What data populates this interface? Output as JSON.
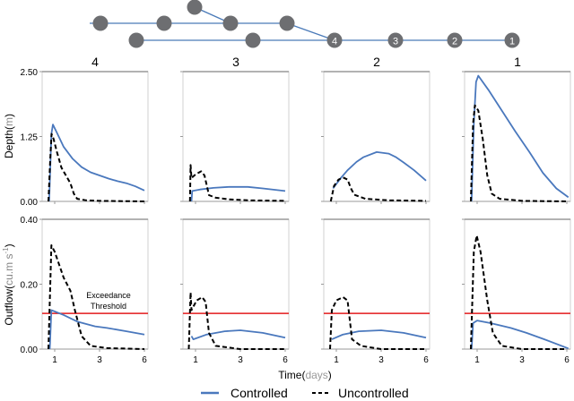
{
  "network": {
    "node_labels": [
      "4",
      "3",
      "2",
      "1"
    ],
    "node_color": "#6d6e71",
    "edge_color": "#4a7ab8"
  },
  "colors": {
    "controlled": "#4a78bd",
    "uncontrolled": "#000000",
    "threshold": "#e31a1c"
  },
  "xaxis": {
    "label": "Time",
    "unit": "days",
    "ticks": [
      1,
      3,
      6
    ]
  },
  "legend": {
    "controlled": "Controlled",
    "uncontrolled": "Uncontrolled"
  },
  "threshold_label": [
    "Exceedance",
    "Threshold"
  ],
  "chart_data": [
    {
      "type": "line",
      "panel": "4",
      "row": "depth",
      "ylabel": "Depth",
      "yunit": "m",
      "ylim": [
        0,
        2.5
      ],
      "yticks": [
        "0.00",
        "1.25",
        "2.50"
      ],
      "series": [
        {
          "name": "Controlled",
          "points": [
            [
              0.75,
              0
            ],
            [
              0.85,
              1.3
            ],
            [
              0.92,
              1.48
            ],
            [
              1.1,
              1.32
            ],
            [
              1.4,
              1.05
            ],
            [
              1.8,
              0.82
            ],
            [
              2.2,
              0.66
            ],
            [
              2.6,
              0.56
            ],
            [
              3.0,
              0.5
            ],
            [
              3.6,
              0.44
            ],
            [
              4.2,
              0.39
            ],
            [
              4.8,
              0.35
            ],
            [
              5.4,
              0.29
            ],
            [
              6.0,
              0.21
            ]
          ]
        },
        {
          "name": "Uncontrolled",
          "points": [
            [
              0.72,
              0
            ],
            [
              0.8,
              0.8
            ],
            [
              0.86,
              1.3
            ],
            [
              0.95,
              1.2
            ],
            [
              1.1,
              0.95
            ],
            [
              1.3,
              0.65
            ],
            [
              1.5,
              0.5
            ],
            [
              1.7,
              0.35
            ],
            [
              1.85,
              0.15
            ],
            [
              2.0,
              0.05
            ],
            [
              2.4,
              0.02
            ],
            [
              3,
              0.01
            ],
            [
              6,
              0
            ]
          ]
        }
      ]
    },
    {
      "type": "line",
      "panel": "3",
      "row": "depth",
      "ylim": [
        0,
        2.5
      ],
      "series": [
        {
          "name": "Controlled",
          "points": [
            [
              0.82,
              0
            ],
            [
              0.85,
              0.2
            ],
            [
              1.2,
              0.23
            ],
            [
              1.8,
              0.26
            ],
            [
              2.5,
              0.28
            ],
            [
              3.5,
              0.28
            ],
            [
              4.5,
              0.25
            ],
            [
              6.0,
              0.2
            ]
          ]
        },
        {
          "name": "Uncontrolled",
          "points": [
            [
              0.75,
              0
            ],
            [
              0.78,
              0.7
            ],
            [
              0.82,
              0.45
            ],
            [
              1.0,
              0.52
            ],
            [
              1.25,
              0.58
            ],
            [
              1.4,
              0.5
            ],
            [
              1.6,
              0.12
            ],
            [
              1.9,
              0.07
            ],
            [
              2.5,
              0.04
            ],
            [
              3.5,
              0.02
            ],
            [
              6,
              0.01
            ]
          ]
        }
      ]
    },
    {
      "type": "line",
      "panel": "2",
      "row": "depth",
      "ylim": [
        0,
        2.5
      ],
      "series": [
        {
          "name": "Controlled",
          "points": [
            [
              0.85,
              0.25
            ],
            [
              1.2,
              0.45
            ],
            [
              1.5,
              0.6
            ],
            [
              1.9,
              0.76
            ],
            [
              2.2,
              0.85
            ],
            [
              2.8,
              0.95
            ],
            [
              3.5,
              0.92
            ],
            [
              4.0,
              0.85
            ],
            [
              4.5,
              0.75
            ],
            [
              5.2,
              0.6
            ],
            [
              6.0,
              0.4
            ]
          ]
        },
        {
          "name": "Uncontrolled",
          "points": [
            [
              0.75,
              0
            ],
            [
              0.9,
              0.3
            ],
            [
              1.1,
              0.42
            ],
            [
              1.3,
              0.46
            ],
            [
              1.5,
              0.42
            ],
            [
              1.65,
              0.25
            ],
            [
              1.8,
              0.13
            ],
            [
              2.3,
              0.05
            ],
            [
              3.5,
              0.02
            ],
            [
              6,
              0.01
            ]
          ]
        }
      ]
    },
    {
      "type": "line",
      "panel": "1",
      "row": "depth",
      "ylim": [
        0,
        2.5
      ],
      "series": [
        {
          "name": "Controlled",
          "points": [
            [
              0.75,
              0
            ],
            [
              0.85,
              1.5
            ],
            [
              0.95,
              2.3
            ],
            [
              1.05,
              2.42
            ],
            [
              1.5,
              2.15
            ],
            [
              2.1,
              1.75
            ],
            [
              2.7,
              1.35
            ],
            [
              3.5,
              0.95
            ],
            [
              4.4,
              0.55
            ],
            [
              5.3,
              0.25
            ],
            [
              6.1,
              0.08
            ]
          ]
        },
        {
          "name": "Uncontrolled",
          "points": [
            [
              0.72,
              0
            ],
            [
              0.82,
              1.5
            ],
            [
              0.9,
              1.85
            ],
            [
              1.05,
              1.75
            ],
            [
              1.25,
              1.2
            ],
            [
              1.45,
              0.5
            ],
            [
              1.65,
              0.15
            ],
            [
              2.0,
              0.05
            ],
            [
              3,
              0.01
            ],
            [
              6,
              0
            ]
          ]
        }
      ]
    },
    {
      "type": "line",
      "panel": "4",
      "row": "outflow",
      "ylabel": "Outflow",
      "yunit": "cu.m s-1",
      "ylim": [
        0,
        0.4
      ],
      "yticks": [
        "0.00",
        "0.20",
        "0.40"
      ],
      "threshold": 0.11,
      "series": [
        {
          "name": "Controlled",
          "points": [
            [
              0.78,
              0
            ],
            [
              0.85,
              0.12
            ],
            [
              1.4,
              0.105
            ],
            [
              2.0,
              0.085
            ],
            [
              2.8,
              0.07
            ],
            [
              3.5,
              0.065
            ],
            [
              4.8,
              0.055
            ],
            [
              6.0,
              0.045
            ]
          ]
        },
        {
          "name": "Uncontrolled",
          "points": [
            [
              0.72,
              0
            ],
            [
              0.85,
              0.32
            ],
            [
              1.0,
              0.3
            ],
            [
              1.4,
              0.22
            ],
            [
              1.7,
              0.18
            ],
            [
              1.9,
              0.12
            ],
            [
              2.2,
              0.04
            ],
            [
              2.6,
              0.01
            ],
            [
              3.5,
              0.003
            ],
            [
              6,
              0
            ]
          ]
        }
      ]
    },
    {
      "type": "line",
      "panel": "3",
      "row": "outflow",
      "ylim": [
        0,
        0.4
      ],
      "threshold": 0.11,
      "series": [
        {
          "name": "Controlled",
          "points": [
            [
              0.82,
              0.04
            ],
            [
              0.9,
              0.03
            ],
            [
              1.5,
              0.045
            ],
            [
              2.3,
              0.055
            ],
            [
              3.0,
              0.058
            ],
            [
              4.5,
              0.05
            ],
            [
              6.0,
              0.035
            ]
          ]
        },
        {
          "name": "Uncontrolled",
          "points": [
            [
              0.7,
              0
            ],
            [
              0.78,
              0.175
            ],
            [
              0.82,
              0.12
            ],
            [
              1.05,
              0.15
            ],
            [
              1.3,
              0.16
            ],
            [
              1.45,
              0.145
            ],
            [
              1.6,
              0.05
            ],
            [
              1.9,
              0.01
            ],
            [
              3,
              0
            ],
            [
              6,
              0
            ]
          ]
        }
      ]
    },
    {
      "type": "line",
      "panel": "2",
      "row": "outflow",
      "ylim": [
        0,
        0.4
      ],
      "threshold": 0.11,
      "series": [
        {
          "name": "Controlled",
          "points": [
            [
              0.8,
              0.03
            ],
            [
              1.3,
              0.045
            ],
            [
              2.0,
              0.055
            ],
            [
              3.0,
              0.058
            ],
            [
              4.5,
              0.05
            ],
            [
              6.0,
              0.035
            ]
          ]
        },
        {
          "name": "Uncontrolled",
          "points": [
            [
              0.72,
              0
            ],
            [
              0.8,
              0.12
            ],
            [
              1.0,
              0.15
            ],
            [
              1.3,
              0.16
            ],
            [
              1.5,
              0.15
            ],
            [
              1.7,
              0.03
            ],
            [
              2.1,
              0.01
            ],
            [
              3,
              0
            ],
            [
              6,
              0
            ]
          ]
        }
      ]
    },
    {
      "type": "line",
      "panel": "1",
      "row": "outflow",
      "ylim": [
        0,
        0.4
      ],
      "threshold": 0.11,
      "series": [
        {
          "name": "Controlled",
          "points": [
            [
              0.75,
              0
            ],
            [
              0.82,
              0.08
            ],
            [
              1.0,
              0.088
            ],
            [
              1.6,
              0.08
            ],
            [
              2.5,
              0.065
            ],
            [
              3.3,
              0.05
            ],
            [
              4.5,
              0.03
            ],
            [
              6.1,
              0.002
            ]
          ]
        },
        {
          "name": "Uncontrolled",
          "points": [
            [
              0.72,
              0
            ],
            [
              0.85,
              0.3
            ],
            [
              0.98,
              0.35
            ],
            [
              1.15,
              0.3
            ],
            [
              1.45,
              0.15
            ],
            [
              1.7,
              0.05
            ],
            [
              2.1,
              0.01
            ],
            [
              3,
              0
            ],
            [
              6,
              0
            ]
          ]
        }
      ]
    }
  ]
}
